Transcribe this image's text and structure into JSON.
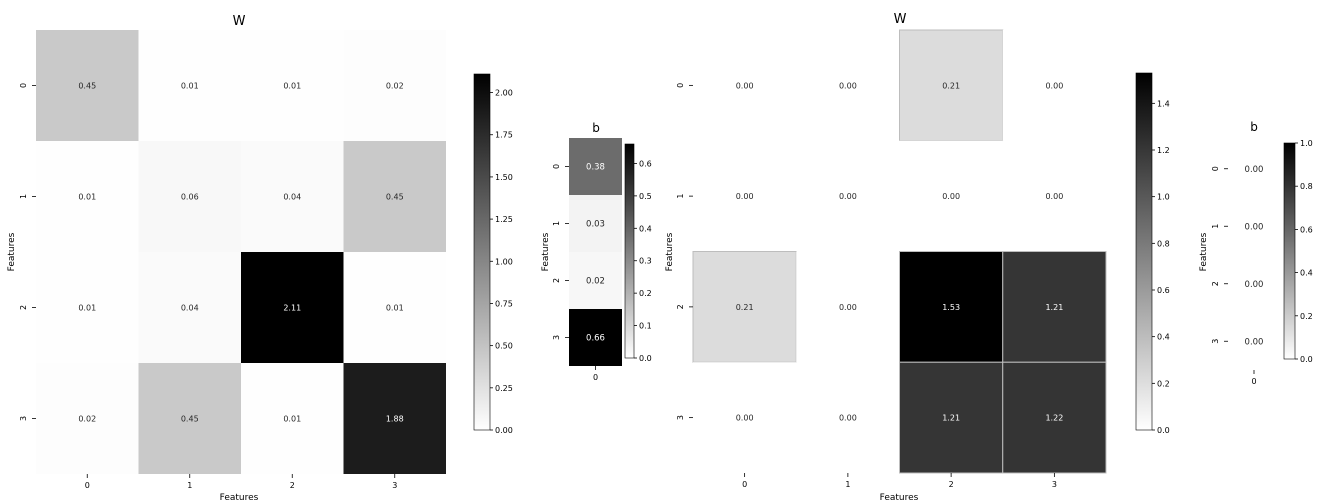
{
  "chart_data": [
    {
      "type": "heatmap",
      "title": "W",
      "xlabel": "Features",
      "ylabel": "Features",
      "x_ticks": [
        "0",
        "1",
        "2",
        "3"
      ],
      "y_ticks": [
        "0",
        "1",
        "2",
        "3"
      ],
      "values": [
        [
          0.45,
          0.01,
          0.01,
          0.02
        ],
        [
          0.01,
          0.06,
          0.04,
          0.45
        ],
        [
          0.01,
          0.04,
          2.11,
          0.01
        ],
        [
          0.02,
          0.45,
          0.01,
          1.88
        ]
      ],
      "colormap": "Greys",
      "vmin": 0.0,
      "vmax": 2.11,
      "colorbar_ticks": [
        "0.00",
        "0.25",
        "0.50",
        "0.75",
        "1.00",
        "1.25",
        "1.50",
        "1.75",
        "2.00"
      ]
    },
    {
      "type": "heatmap",
      "title": "b",
      "xlabel": "",
      "ylabel": "Features",
      "x_ticks": [
        "0"
      ],
      "y_ticks": [
        "0",
        "1",
        "2",
        "3"
      ],
      "values": [
        [
          0.38
        ],
        [
          0.03
        ],
        [
          0.02
        ],
        [
          0.66
        ]
      ],
      "colormap": "Greys",
      "vmin": 0.0,
      "vmax": 0.66,
      "colorbar_ticks": [
        "0.0",
        "0.1",
        "0.2",
        "0.3",
        "0.4",
        "0.5",
        "0.6"
      ]
    },
    {
      "type": "heatmap",
      "title": "W",
      "xlabel": "Features",
      "ylabel": "Features",
      "x_ticks": [
        "0",
        "1",
        "2",
        "3"
      ],
      "y_ticks": [
        "0",
        "1",
        "2",
        "3"
      ],
      "values": [
        [
          0.0,
          0.0,
          0.21,
          0.0
        ],
        [
          0.0,
          0.0,
          0.0,
          0.0
        ],
        [
          0.21,
          0.0,
          1.53,
          1.21
        ],
        [
          0.0,
          0.0,
          1.21,
          1.22
        ]
      ],
      "colormap": "Greys",
      "vmin": 0.0,
      "vmax": 1.53,
      "cell_grid": true,
      "colorbar_ticks": [
        "0.0",
        "0.2",
        "0.4",
        "0.6",
        "0.8",
        "1.0",
        "1.2",
        "1.4"
      ]
    },
    {
      "type": "heatmap",
      "title": "b",
      "xlabel": "",
      "ylabel": "Features",
      "x_ticks": [
        "0"
      ],
      "y_ticks": [
        "0",
        "1",
        "2",
        "3"
      ],
      "values": [
        [
          0.0
        ],
        [
          0.0
        ],
        [
          0.0
        ],
        [
          0.0
        ]
      ],
      "colormap": "Greys",
      "vmin": 0.0,
      "vmax": 1.0,
      "colorbar_ticks": [
        "0.0",
        "0.2",
        "0.4",
        "0.6",
        "0.8",
        "1.0"
      ]
    }
  ]
}
